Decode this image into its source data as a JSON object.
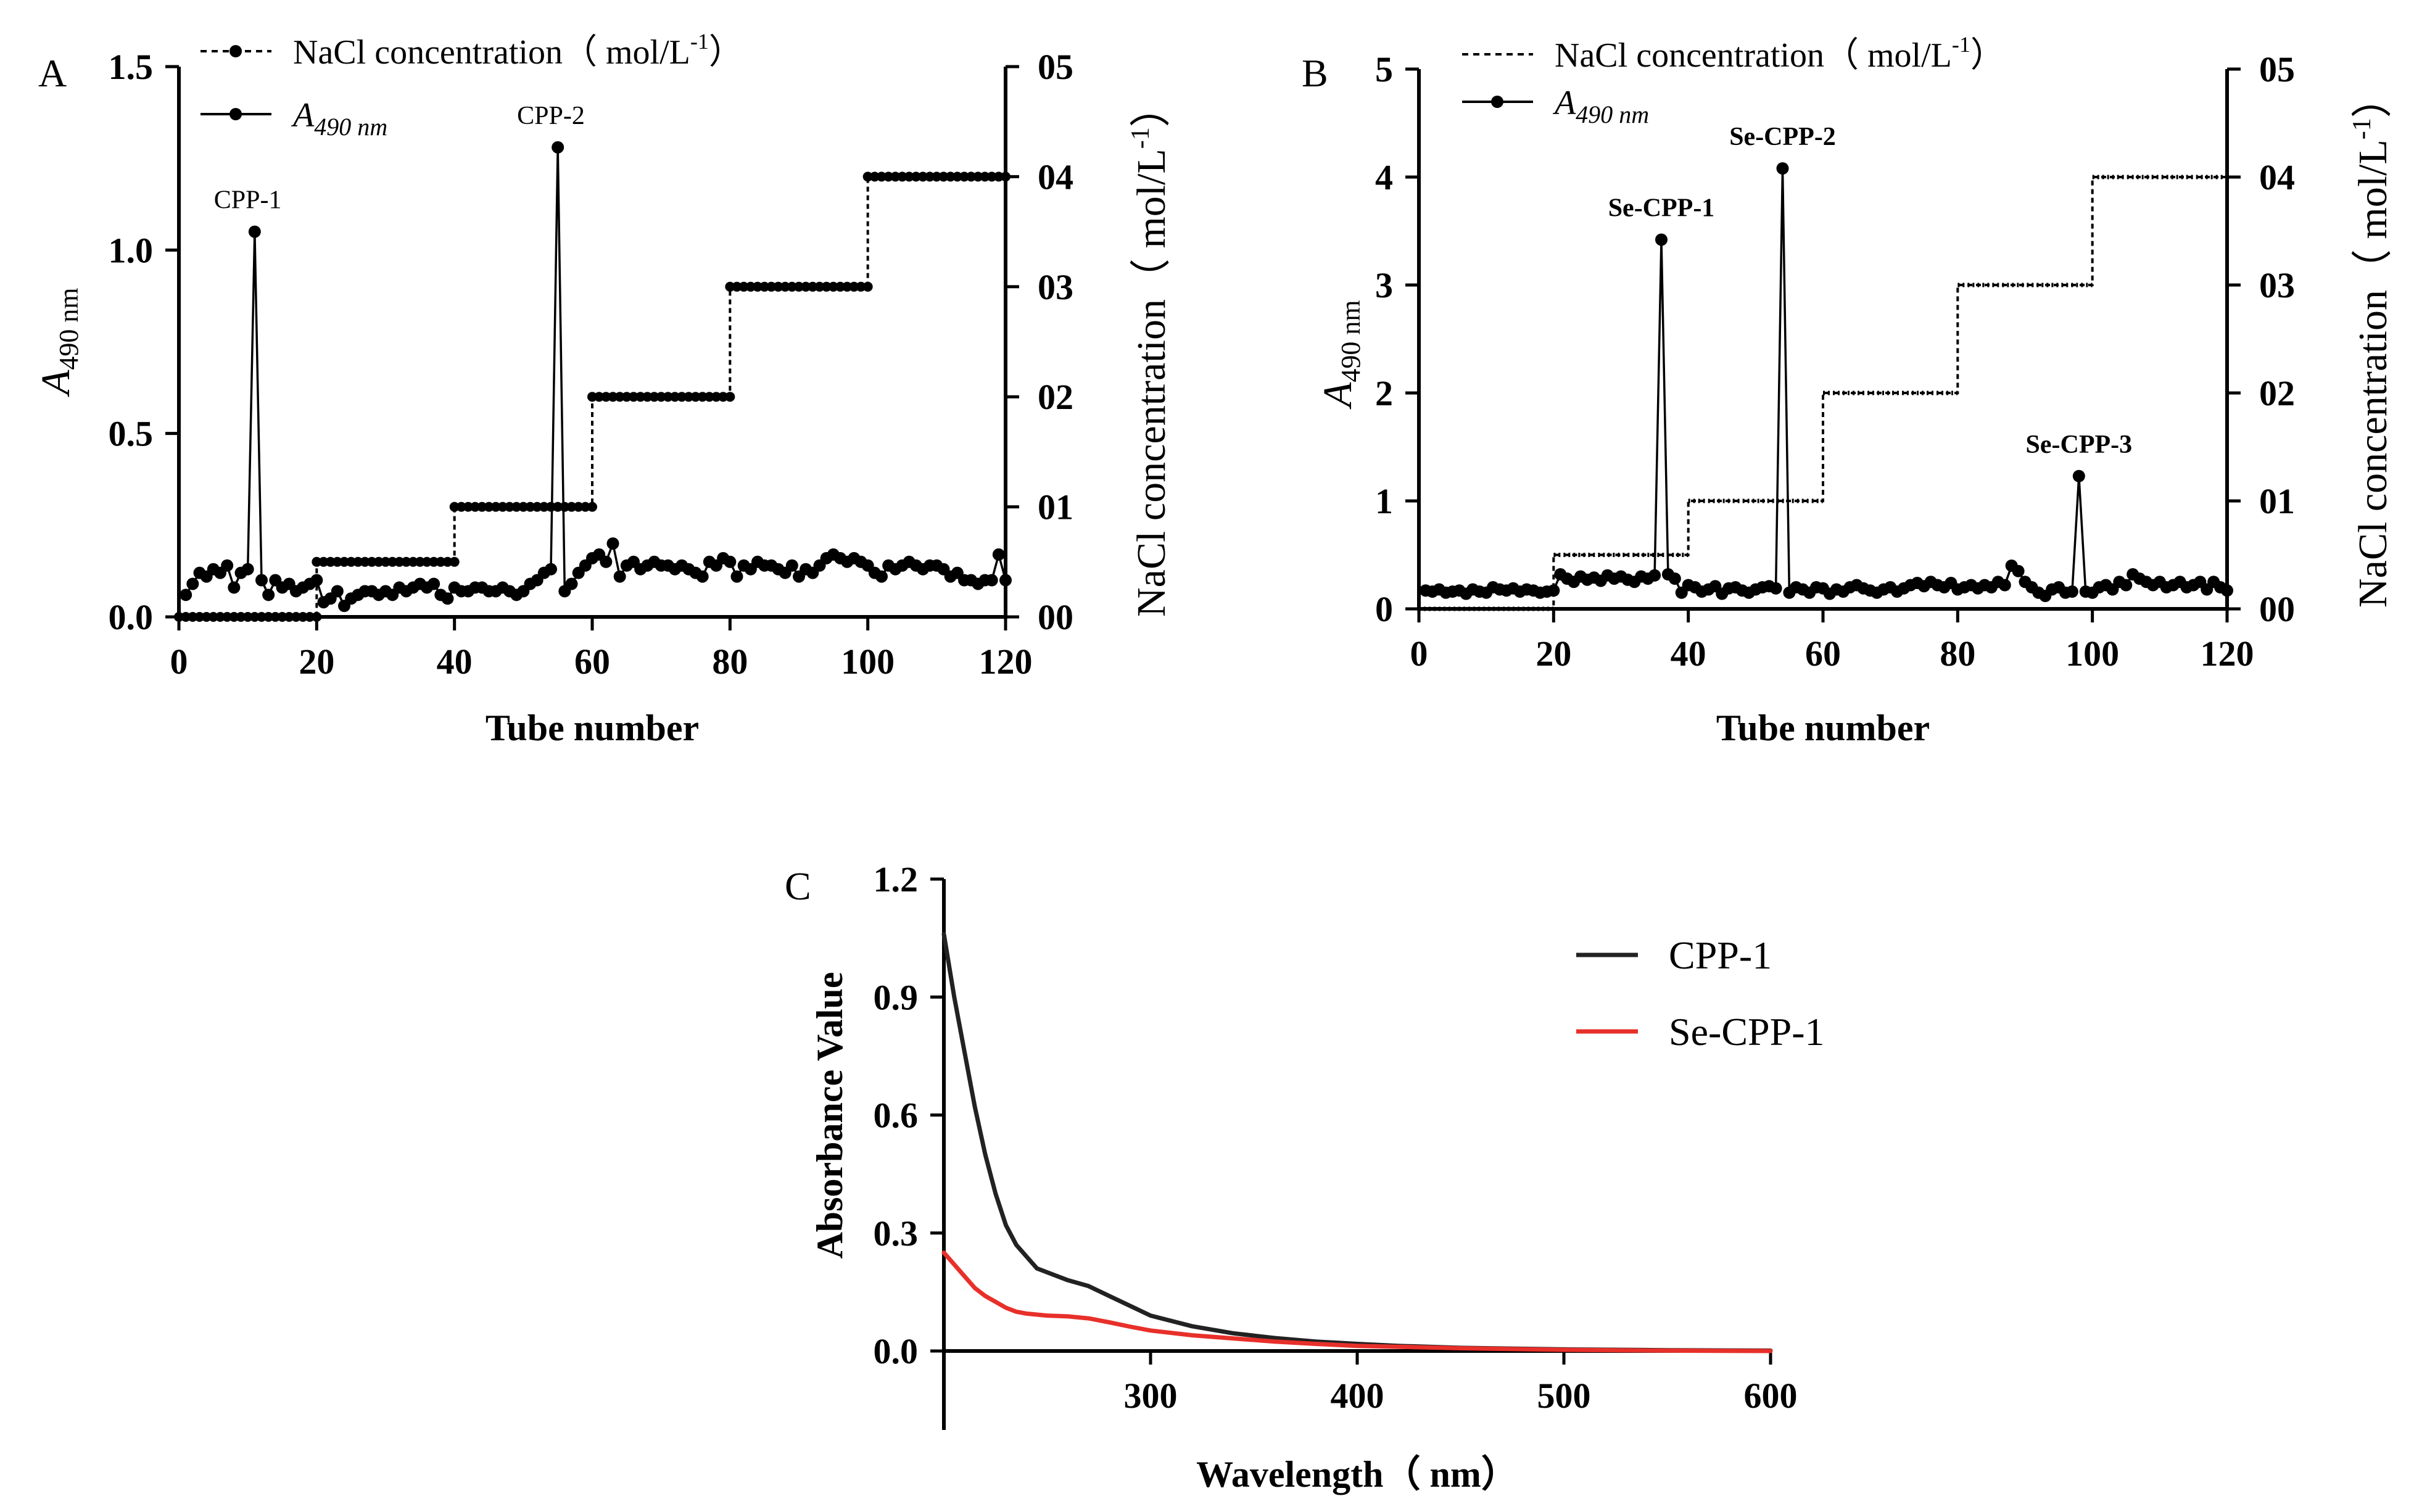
{
  "panels": {
    "A": {
      "letter": "A",
      "legend": {
        "nacl": "NaCl concentration（ mol/L",
        "nacl_sup": "-1",
        "nacl_close": "）",
        "abs_italic": "A",
        "abs_sub": "490 nm"
      },
      "y_left_title_italic": "A",
      "y_left_title_sub": "490 nm",
      "y_right_title": "NaCl concentration（ mol/L",
      "y_right_sup": "-1",
      "y_right_close": "）",
      "x_title": "Tube number",
      "peak_labels": [
        "CPP-1",
        "CPP-2"
      ]
    },
    "B": {
      "letter": "B",
      "legend": {
        "nacl": "NaCl concentration（ mol/L",
        "nacl_sup": "-1",
        "nacl_close": "）",
        "abs_italic": "A",
        "abs_sub": "490 nm"
      },
      "y_left_title_italic": "A",
      "y_left_title_sub": "490 nm",
      "y_right_title": "NaCl concentration（ mol/L",
      "y_right_sup": "-1",
      "y_right_close": "）",
      "x_title": "Tube number",
      "peak_labels": [
        "Se-CPP-1",
        "Se-CPP-2",
        "Se-CPP-3"
      ]
    },
    "C": {
      "letter": "C",
      "y_title": "Absorbance Value",
      "x_title": "Wavelength（ nm）",
      "legend": [
        "CPP-1",
        "Se-CPP-1"
      ]
    }
  },
  "chart_data": [
    {
      "panel": "A",
      "type": "line",
      "xlabel": "Tube number",
      "ylabel": "A 490 nm",
      "y2label": "NaCl concentration（ mol/L-1）",
      "xlim": [
        0,
        120
      ],
      "ylim": [
        0,
        1.5
      ],
      "y2lim": [
        0,
        0.5
      ],
      "xticks": [
        "0",
        "20",
        "40",
        "60",
        "80",
        "100",
        "120"
      ],
      "yticks": [
        "0.0",
        "0.5",
        "1.0",
        "1.5"
      ],
      "y2ticks": [
        "00",
        "01",
        "02",
        "03",
        "04",
        "05"
      ],
      "series": [
        {
          "name": "A 490 nm",
          "style": "solid-dots",
          "x": [
            1,
            2,
            3,
            4,
            5,
            6,
            7,
            8,
            9,
            10,
            11,
            12,
            13,
            14,
            15,
            16,
            17,
            18,
            19,
            20,
            21,
            22,
            23,
            24,
            25,
            26,
            27,
            28,
            29,
            30,
            31,
            32,
            33,
            34,
            35,
            36,
            37,
            38,
            39,
            40,
            41,
            42,
            43,
            44,
            45,
            46,
            47,
            48,
            49,
            50,
            51,
            52,
            53,
            54,
            55,
            56,
            57,
            58,
            59,
            60,
            61,
            62,
            63,
            64,
            65,
            66,
            67,
            68,
            69,
            70,
            71,
            72,
            73,
            74,
            75,
            76,
            77,
            78,
            79,
            80,
            81,
            82,
            83,
            84,
            85,
            86,
            87,
            88,
            89,
            90,
            91,
            92,
            93,
            94,
            95,
            96,
            97,
            98,
            99,
            100,
            101,
            102,
            103,
            104,
            105,
            106,
            107,
            108,
            109,
            110,
            111,
            112,
            113,
            114,
            115,
            116,
            117,
            118,
            119,
            120
          ],
          "values": [
            0.06,
            0.09,
            0.12,
            0.11,
            0.13,
            0.12,
            0.14,
            0.08,
            0.12,
            0.13,
            1.05,
            0.1,
            0.06,
            0.1,
            0.08,
            0.09,
            0.07,
            0.08,
            0.09,
            0.1,
            0.04,
            0.05,
            0.07,
            0.03,
            0.05,
            0.06,
            0.07,
            0.07,
            0.06,
            0.07,
            0.06,
            0.08,
            0.07,
            0.08,
            0.09,
            0.08,
            0.09,
            0.06,
            0.05,
            0.08,
            0.07,
            0.07,
            0.08,
            0.08,
            0.07,
            0.07,
            0.08,
            0.07,
            0.06,
            0.07,
            0.09,
            0.1,
            0.12,
            0.13,
            1.28,
            0.07,
            0.09,
            0.12,
            0.14,
            0.16,
            0.17,
            0.15,
            0.2,
            0.11,
            0.14,
            0.15,
            0.13,
            0.14,
            0.15,
            0.14,
            0.14,
            0.13,
            0.14,
            0.13,
            0.12,
            0.11,
            0.15,
            0.14,
            0.16,
            0.15,
            0.11,
            0.14,
            0.13,
            0.15,
            0.14,
            0.14,
            0.13,
            0.12,
            0.14,
            0.11,
            0.13,
            0.12,
            0.14,
            0.16,
            0.17,
            0.16,
            0.15,
            0.16,
            0.15,
            0.14,
            0.12,
            0.11,
            0.14,
            0.13,
            0.14,
            0.15,
            0.14,
            0.13,
            0.14,
            0.14,
            0.13,
            0.11,
            0.12,
            0.1,
            0.1,
            0.09,
            0.1,
            0.1,
            0.17,
            0.1
          ]
        },
        {
          "name": "NaCl concentration（ mol/L-1）",
          "style": "dashed-steps",
          "axis": "right",
          "steps": [
            {
              "from": 0,
              "to": 20,
              "value": 0.0
            },
            {
              "from": 20,
              "to": 40,
              "value": 0.05
            },
            {
              "from": 40,
              "to": 60,
              "value": 0.1
            },
            {
              "from": 60,
              "to": 80,
              "value": 0.2
            },
            {
              "from": 80,
              "to": 100,
              "value": 0.3
            },
            {
              "from": 100,
              "to": 120,
              "value": 0.4
            }
          ]
        }
      ],
      "annotations": [
        {
          "text": "CPP-1",
          "x": 10,
          "y": 1.05
        },
        {
          "text": "CPP-2",
          "x": 54,
          "y": 1.28
        }
      ]
    },
    {
      "panel": "B",
      "type": "line",
      "xlabel": "Tube number",
      "ylabel": "A 490 nm",
      "y2label": "NaCl concentration（ mol/L-1）",
      "xlim": [
        0,
        120
      ],
      "ylim": [
        0,
        5
      ],
      "y2lim": [
        0,
        0.5
      ],
      "xticks": [
        "0",
        "20",
        "40",
        "60",
        "80",
        "100",
        "120"
      ],
      "yticks": [
        "0",
        "1",
        "2",
        "3",
        "4",
        "5"
      ],
      "y2ticks": [
        "00",
        "01",
        "02",
        "03",
        "04",
        "05"
      ],
      "series": [
        {
          "name": "A 490 nm",
          "style": "solid-dots",
          "x": [
            1,
            2,
            3,
            4,
            5,
            6,
            7,
            8,
            9,
            10,
            11,
            12,
            13,
            14,
            15,
            16,
            17,
            18,
            19,
            20,
            21,
            22,
            23,
            24,
            25,
            26,
            27,
            28,
            29,
            30,
            31,
            32,
            33,
            34,
            35,
            36,
            37,
            38,
            39,
            40,
            41,
            42,
            43,
            44,
            45,
            46,
            47,
            48,
            49,
            50,
            51,
            52,
            53,
            54,
            55,
            56,
            57,
            58,
            59,
            60,
            61,
            62,
            63,
            64,
            65,
            66,
            67,
            68,
            69,
            70,
            71,
            72,
            73,
            74,
            75,
            76,
            77,
            78,
            79,
            80,
            81,
            82,
            83,
            84,
            85,
            86,
            87,
            88,
            89,
            90,
            91,
            92,
            93,
            94,
            95,
            96,
            97,
            98,
            99,
            100,
            101,
            102,
            103,
            104,
            105,
            106,
            107,
            108,
            109,
            110,
            111,
            112,
            113,
            114,
            115,
            116,
            117,
            118,
            119,
            120
          ],
          "values": [
            0.17,
            0.16,
            0.18,
            0.15,
            0.16,
            0.17,
            0.14,
            0.18,
            0.16,
            0.15,
            0.2,
            0.18,
            0.17,
            0.19,
            0.16,
            0.18,
            0.17,
            0.15,
            0.16,
            0.17,
            0.32,
            0.28,
            0.25,
            0.3,
            0.27,
            0.29,
            0.26,
            0.31,
            0.28,
            0.3,
            0.27,
            0.25,
            0.3,
            0.28,
            0.31,
            3.42,
            0.32,
            0.28,
            0.15,
            0.22,
            0.2,
            0.16,
            0.18,
            0.21,
            0.14,
            0.19,
            0.2,
            0.17,
            0.15,
            0.18,
            0.2,
            0.21,
            0.19,
            4.08,
            0.15,
            0.2,
            0.18,
            0.15,
            0.2,
            0.19,
            0.14,
            0.18,
            0.16,
            0.2,
            0.22,
            0.19,
            0.17,
            0.15,
            0.18,
            0.2,
            0.16,
            0.19,
            0.22,
            0.24,
            0.21,
            0.25,
            0.22,
            0.2,
            0.24,
            0.18,
            0.2,
            0.22,
            0.19,
            0.22,
            0.2,
            0.25,
            0.22,
            0.4,
            0.35,
            0.25,
            0.2,
            0.15,
            0.12,
            0.18,
            0.2,
            0.15,
            0.16,
            1.23,
            0.16,
            0.15,
            0.2,
            0.22,
            0.18,
            0.25,
            0.22,
            0.32,
            0.28,
            0.25,
            0.22,
            0.25,
            0.2,
            0.22,
            0.25,
            0.2,
            0.22,
            0.25,
            0.18,
            0.25,
            0.2,
            0.17
          ]
        },
        {
          "name": "NaCl concentration（ mol/L-1）",
          "style": "dashed-steps",
          "axis": "right",
          "steps": [
            {
              "from": 0,
              "to": 20,
              "value": 0.0
            },
            {
              "from": 20,
              "to": 40,
              "value": 0.05
            },
            {
              "from": 40,
              "to": 60,
              "value": 0.1
            },
            {
              "from": 60,
              "to": 80,
              "value": 0.2
            },
            {
              "from": 80,
              "to": 100,
              "value": 0.3
            },
            {
              "from": 100,
              "to": 120,
              "value": 0.4
            }
          ]
        }
      ],
      "annotations": [
        {
          "text": "Se-CPP-1",
          "x": 36,
          "y": 3.42
        },
        {
          "text": "Se-CPP-2",
          "x": 54,
          "y": 4.08
        },
        {
          "text": "Se-CPP-3",
          "x": 98,
          "y": 1.23
        }
      ]
    },
    {
      "panel": "C",
      "type": "line",
      "xlabel": "Wavelength（ nm）",
      "ylabel": "Absorbance Value",
      "xlim": [
        200,
        600
      ],
      "ylim": [
        0,
        1.2
      ],
      "xticks": [
        "300",
        "400",
        "500",
        "600"
      ],
      "yticks": [
        "0.0",
        "0.3",
        "0.6",
        "0.9",
        "1.2"
      ],
      "legend_position": "right",
      "series": [
        {
          "name": "CPP-1",
          "color": "#222222",
          "x": [
            200,
            205,
            210,
            215,
            220,
            225,
            230,
            235,
            240,
            245,
            250,
            260,
            270,
            280,
            290,
            300,
            320,
            340,
            360,
            380,
            400,
            420,
            450,
            500,
            550,
            600
          ],
          "values": [
            1.06,
            0.9,
            0.76,
            0.62,
            0.5,
            0.4,
            0.32,
            0.27,
            0.24,
            0.21,
            0.2,
            0.18,
            0.165,
            0.14,
            0.115,
            0.09,
            0.063,
            0.045,
            0.033,
            0.024,
            0.018,
            0.013,
            0.008,
            0.004,
            0.002,
            0.001
          ]
        },
        {
          "name": "Se-CPP-1",
          "color": "#e8302a",
          "x": [
            200,
            205,
            210,
            215,
            220,
            225,
            230,
            235,
            240,
            250,
            260,
            270,
            280,
            290,
            300,
            320,
            340,
            360,
            380,
            400,
            450,
            500,
            550,
            600
          ],
          "values": [
            0.25,
            0.22,
            0.19,
            0.16,
            0.14,
            0.125,
            0.11,
            0.1,
            0.095,
            0.09,
            0.088,
            0.083,
            0.073,
            0.062,
            0.052,
            0.04,
            0.032,
            0.024,
            0.018,
            0.013,
            0.007,
            0.003,
            0.001,
            0.0
          ]
        }
      ]
    }
  ]
}
